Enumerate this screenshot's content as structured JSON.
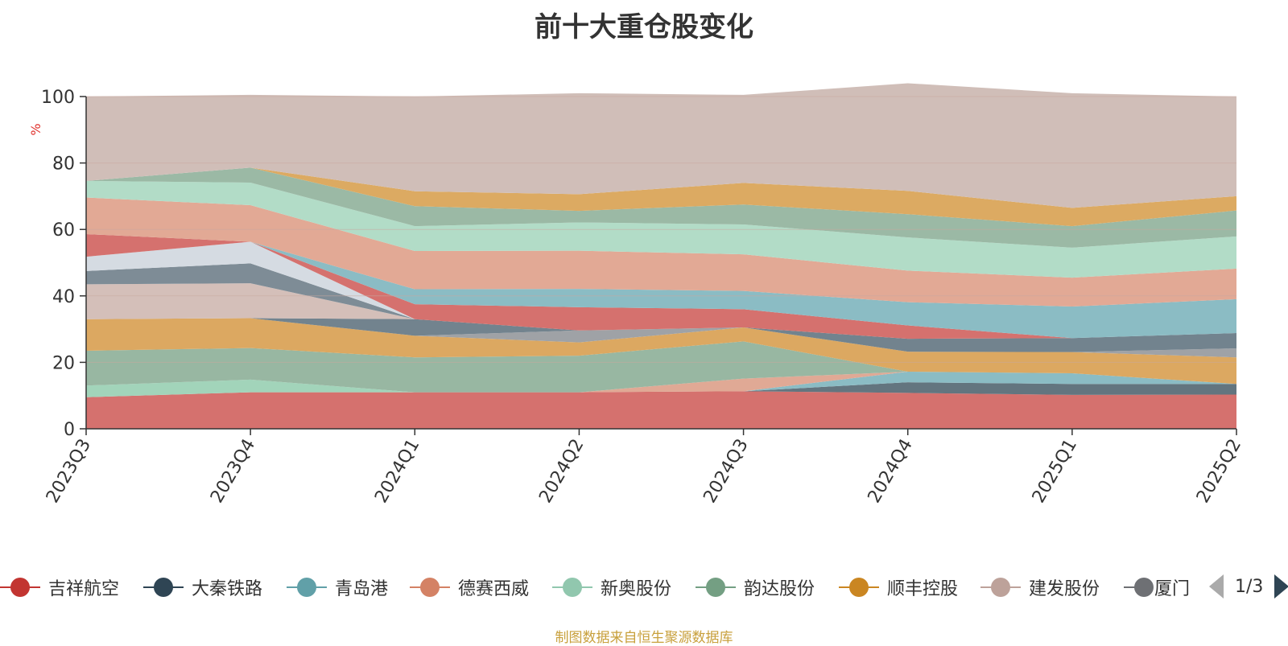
{
  "title": "前十大重仓股变化",
  "chart_data": {
    "type": "area",
    "stacked": true,
    "title": "前十大重仓股变化",
    "ylabel": "%",
    "ylim": [
      0,
      100
    ],
    "yticks": [
      0,
      20,
      40,
      60,
      80,
      100
    ],
    "x": [
      "2023Q3",
      "2023Q4",
      "2024Q1",
      "2024Q2",
      "2024Q3",
      "2024Q4",
      "2025Q1",
      "2025Q2"
    ],
    "grid": true,
    "series": [
      {
        "name": "吉祥航空",
        "color": "#d5716e",
        "values": [
          9.5,
          11,
          11,
          11,
          11.3,
          10.8,
          10.2,
          10.3
        ]
      },
      {
        "name": "",
        "color": "#a2d4ba",
        "values": [
          3.5,
          3.8,
          0,
          0,
          0,
          0,
          0,
          0
        ]
      },
      {
        "name": "",
        "color": "#63757f",
        "values": [
          0,
          0,
          0,
          0,
          0,
          3.2,
          3.3,
          3.2
        ]
      },
      {
        "name": "",
        "color": "#8bbcc4",
        "values": [
          0,
          0,
          0,
          0,
          0,
          3.2,
          3.2,
          0
        ]
      },
      {
        "name": "",
        "color": "#e0a995",
        "values": [
          0,
          0,
          0,
          0,
          3.8,
          0,
          0,
          0
        ]
      },
      {
        "name": "",
        "color": "#98b7a2",
        "values": [
          10.5,
          9.5,
          10.5,
          11,
          11.2,
          0,
          0,
          0
        ]
      },
      {
        "name": "",
        "color": "#dca861",
        "values": [
          9.5,
          9,
          6.5,
          4,
          4.2,
          6,
          6.4,
          8
        ]
      },
      {
        "name": "",
        "color": "#9fa2a6",
        "values": [
          0,
          0,
          0,
          3.6,
          0,
          0,
          0,
          2.7
        ]
      },
      {
        "name": "",
        "color": "#72838e",
        "values": [
          0,
          0,
          5,
          0,
          0,
          3.9,
          4.2,
          4.6
        ]
      },
      {
        "name": "",
        "color": "#d4bfb9",
        "values": [
          10.5,
          10.5,
          0,
          0,
          0,
          0,
          0,
          0
        ]
      },
      {
        "name": "",
        "color": "#7e8c96",
        "values": [
          4,
          6,
          0,
          0,
          0,
          0,
          0,
          0
        ]
      },
      {
        "name": "",
        "color": "#d5dbe2",
        "values": [
          4.3,
          6.5,
          0,
          0,
          0,
          0,
          0,
          0
        ]
      },
      {
        "name": "",
        "color": "#d5716e",
        "values": [
          6.8,
          0,
          4.5,
          7,
          5.5,
          4,
          0,
          0
        ]
      },
      {
        "name": "",
        "color": "#8bbcc4",
        "values": [
          0,
          0,
          4.5,
          5.5,
          5.5,
          7,
          9.5,
          10.2
        ]
      },
      {
        "name": "",
        "color": "#e2a995",
        "values": [
          11,
          11,
          11.5,
          11.5,
          11,
          9.5,
          8.7,
          9.2
        ]
      },
      {
        "name": "",
        "color": "#b2dcc7",
        "values": [
          5,
          6.8,
          7.5,
          8.5,
          9,
          10,
          9,
          9.7
        ]
      },
      {
        "name": "",
        "color": "#9bb9a5",
        "values": [
          0,
          4.5,
          6,
          3.5,
          6,
          7,
          6.5,
          7.8
        ]
      },
      {
        "name": "",
        "color": "#dcaa62",
        "values": [
          0,
          0,
          4.5,
          5,
          6.5,
          7,
          5.5,
          4.3
        ]
      },
      {
        "name": "",
        "color": "#d0beb8",
        "values": [
          25.4,
          21.9,
          28.5,
          30.4,
          26.5,
          32.4,
          34.5,
          30
        ]
      }
    ]
  },
  "legend": {
    "items": [
      {
        "label": "吉祥航空",
        "color": "#c23531"
      },
      {
        "label": "大秦铁路",
        "color": "#2f4554"
      },
      {
        "label": "青岛港",
        "color": "#61a0a8"
      },
      {
        "label": "德赛西威",
        "color": "#d48265"
      },
      {
        "label": "新奥股份",
        "color": "#91c7ae"
      },
      {
        "label": "韵达股份",
        "color": "#749f83"
      },
      {
        "label": "顺丰控股",
        "color": "#ca8622"
      },
      {
        "label": "建发股份",
        "color": "#bda29a"
      },
      {
        "label": "厦门",
        "color": "#6e7074"
      }
    ],
    "page": "1/3"
  },
  "source": "制图数据来自恒生聚源数据库"
}
